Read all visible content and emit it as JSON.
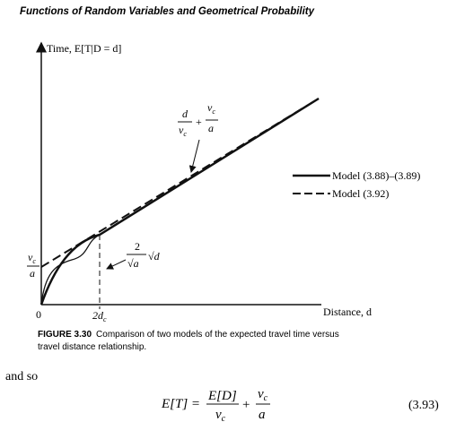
{
  "header": {
    "title": "Functions of Random Variables and Geometrical Probability"
  },
  "figure": {
    "y_axis_label": "Time, E[T|D = d]",
    "x_axis_label": "Distance, d",
    "x_origin": "0",
    "x_tick": {
      "main": "2d",
      "sub": "c"
    },
    "y_tick": {
      "num_main": "v",
      "num_sub": "c",
      "den": "a"
    },
    "line_annotation": {
      "term1_num": "d",
      "term1_den_main": "v",
      "term1_den_sub": "c",
      "plus": "+",
      "term2_num_main": "v",
      "term2_num_sub": "c",
      "term2_den": "a"
    },
    "curve_annotation": {
      "num": "2",
      "den": "√a",
      "factor": "√d"
    },
    "legend": [
      "Model (3.88)–(3.89)",
      "Model (3.92)"
    ]
  },
  "caption": {
    "label": "FIGURE 3.30",
    "lines": [
      "Comparison of two models of the expected travel time versus",
      "travel distance relationship."
    ]
  },
  "body": {
    "text": "and so"
  },
  "equation": {
    "lhs": "E[T] =",
    "num": "E[D]",
    "den_main": "v",
    "den_sub": "c",
    "plus": "+",
    "num2_main": "v",
    "num2_sub": "c",
    "den2": "a",
    "number": "(3.93)"
  }
}
